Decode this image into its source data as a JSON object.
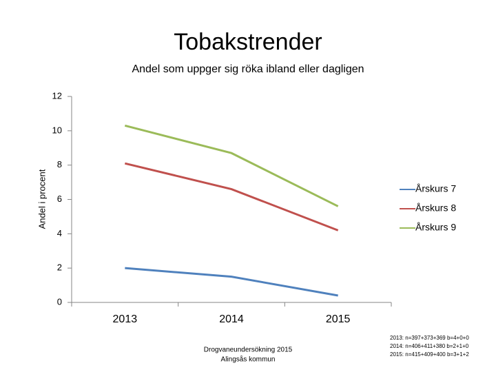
{
  "chart_data": {
    "type": "line",
    "title": "Tobakstrender",
    "subtitle": "Andel som uppger sig röka ibland eller dagligen",
    "y_label": "Andel i procent",
    "categories": [
      "2013",
      "2014",
      "2015"
    ],
    "series": [
      {
        "name": "Årskurs 7",
        "color": "#4f81bd",
        "values": [
          2.0,
          1.5,
          0.4
        ]
      },
      {
        "name": "Årskurs 8",
        "color": "#c0504d",
        "values": [
          8.1,
          6.6,
          4.2
        ]
      },
      {
        "name": "Årskurs 9",
        "color": "#9bbb59",
        "values": [
          10.3,
          8.7,
          5.6
        ]
      }
    ],
    "ylim": [
      0,
      12
    ],
    "yticks": [
      0,
      2,
      4,
      6,
      8,
      10,
      12
    ],
    "grid": false,
    "legend": "right"
  },
  "footer": [
    "Drogvaneundersökning 2015",
    "Alingsås kommun"
  ],
  "notes": [
    "2013: n=397+373+369 b=4+0+0",
    "2014: n=406+411+380 b=2+1+0",
    "2015: n=415+409+400 b=3+1+2"
  ]
}
